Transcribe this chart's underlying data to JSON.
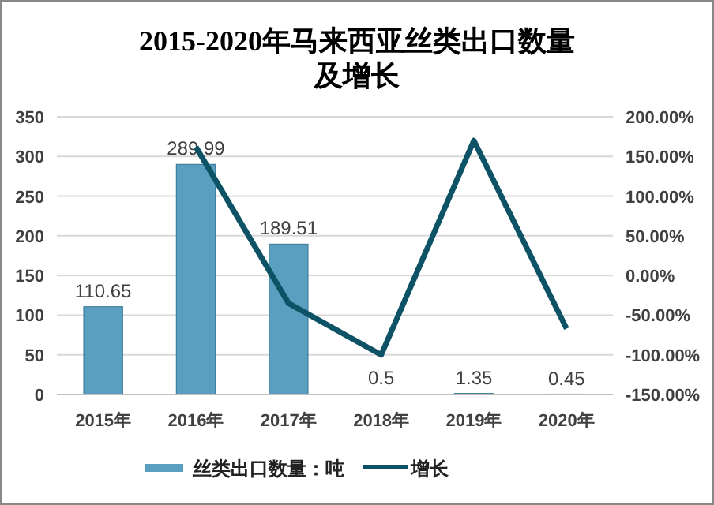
{
  "chart_data": {
    "type": "bar",
    "title": "2015-2020年马来西亚丝类出口数量及增长",
    "categories": [
      "2015年",
      "2016年",
      "2017年",
      "2018年",
      "2019年",
      "2020年"
    ],
    "series": [
      {
        "name": "丝类出口数量：吨",
        "color": "#5b9fc0",
        "values": [
          110.65,
          289.99,
          189.51,
          0.5,
          1.35,
          0.45
        ],
        "value_labels": [
          "110.65",
          "289.99",
          "189.51",
          "0.5",
          "1.35",
          "0.45"
        ]
      },
      {
        "name": "增长",
        "type": "line",
        "axis": "y2",
        "color": "#0e5266",
        "values": [
          null,
          162,
          -35,
          -100,
          170,
          -67
        ]
      }
    ],
    "ylim": [
      0,
      350
    ],
    "yticks": [
      0,
      50,
      100,
      150,
      200,
      250,
      300,
      350
    ],
    "y2lim": [
      -150,
      200
    ],
    "y2ticks": [
      {
        "value": -150,
        "label": "-150.00%"
      },
      {
        "value": -100,
        "label": "-100.00%"
      },
      {
        "value": -50,
        "label": "-50.00%"
      },
      {
        "value": 0,
        "label": "0.00%"
      },
      {
        "value": 50,
        "label": "50.00%"
      },
      {
        "value": 100,
        "label": "100.00%"
      },
      {
        "value": 150,
        "label": "150.00%"
      },
      {
        "value": 200,
        "label": "200.00%"
      }
    ],
    "grid": "y",
    "legend": "bottom",
    "marker": "none",
    "line_style": "solid"
  }
}
